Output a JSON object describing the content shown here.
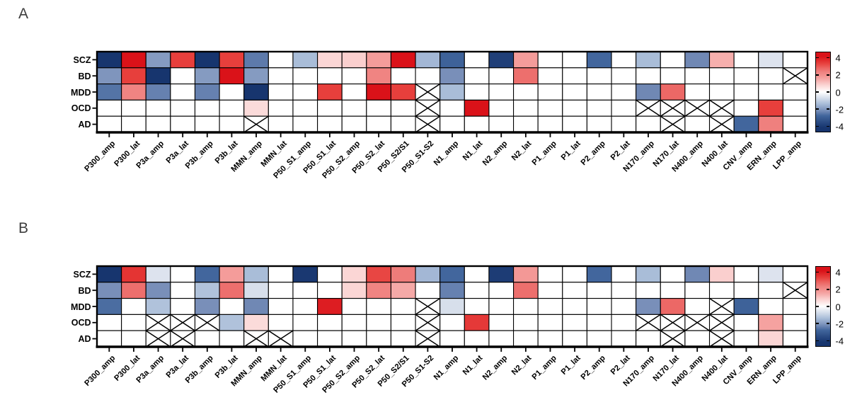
{
  "figure_type": "two-panel heatmap figure",
  "panels": {
    "a_label": "A",
    "b_label": "B"
  },
  "colors": {
    "grid_line": "#000000",
    "background": "#ffffff",
    "positive_max_red": "#da1219",
    "negative_max_blue": "#17356e",
    "panel_letter": "#3d3d3d"
  },
  "colormap": {
    "scale_limit": 4.2,
    "positive_stops": [
      [
        0,
        255,
        255,
        255
      ],
      [
        0.19,
        251,
        214,
        213
      ],
      [
        0.4,
        244,
        157,
        155
      ],
      [
        0.6,
        238,
        123,
        121
      ],
      [
        0.81,
        231,
        63,
        60
      ],
      [
        1,
        218,
        18,
        25
      ]
    ],
    "negative_stops": [
      [
        0,
        255,
        255,
        255
      ],
      [
        0.17,
        214,
        222,
        235
      ],
      [
        0.33,
        170,
        190,
        217
      ],
      [
        0.52,
        122,
        144,
        186
      ],
      [
        0.67,
        65,
        101,
        156
      ],
      [
        1,
        23,
        53,
        110
      ]
    ]
  },
  "chart_data": [
    {
      "type": "heatmap",
      "panel": "A",
      "rows": [
        "SCZ",
        "BD",
        "MDD",
        "OCD",
        "AD"
      ],
      "columns": [
        "P300_amp",
        "P300_lat",
        "P3a_amp",
        "P3a_lat",
        "P3b_amp",
        "P3b_lat",
        "MMN_amp",
        "MMN_lat",
        "P50_S1_amp",
        "P50_S1_lat",
        "P50_S2_amp",
        "P50_S2_lat",
        "P50_S2/S1",
        "P50_S1-S2",
        "N1_amp",
        "N1_lat",
        "N2_amp",
        "N2_lat",
        "P1_amp",
        "P1_lat",
        "P2_amp",
        "P2_lat",
        "N170_amp",
        "N170_lat",
        "N400_amp",
        "N400_lat",
        "CNV_amp",
        "ERN_amp",
        "LPP_amp"
      ],
      "crossed_marker": "x",
      "values": [
        [
          -4.2,
          4.2,
          -2.0,
          3.4,
          -4.2,
          3.4,
          -2.5,
          0,
          -1.4,
          0.8,
          0.9,
          1.7,
          4.2,
          -1.5,
          -2.9,
          0,
          -3.9,
          1.7,
          0,
          0,
          -2.8,
          0,
          -1.4,
          0,
          -2.3,
          1.4,
          0,
          -0.6,
          0
        ],
        [
          -2.1,
          3.4,
          -4.2,
          0,
          -2.0,
          4.2,
          -2.0,
          0,
          0,
          0,
          0,
          2.3,
          0,
          0,
          -2.2,
          0,
          0,
          2.7,
          0,
          0,
          0,
          0,
          0,
          0,
          0,
          0,
          0,
          0,
          "x"
        ],
        [
          -2.6,
          2.3,
          -2.4,
          0,
          -2.4,
          0,
          -4.2,
          0,
          0,
          3.4,
          0,
          4.2,
          3.4,
          "x",
          -1.4,
          0,
          0,
          0,
          0,
          0,
          0,
          0,
          -2.3,
          2.8,
          0,
          0,
          0,
          0,
          0
        ],
        [
          0,
          0,
          0,
          0,
          0,
          0,
          0.7,
          0,
          0,
          0,
          0,
          0,
          0,
          "x",
          0,
          4.2,
          0,
          0,
          0,
          0,
          0,
          0,
          "x",
          "x",
          "x",
          "x",
          0,
          3.4,
          0
        ],
        [
          0,
          0,
          0,
          0,
          0,
          0,
          "x",
          0,
          0,
          0,
          0,
          0,
          0,
          "x",
          0,
          0,
          0,
          0,
          0,
          0,
          0,
          0,
          0,
          "x",
          0,
          "x",
          -2.8,
          2.4,
          0
        ]
      ],
      "colorbar": {
        "ticks": [
          4,
          2,
          0,
          -2,
          -4
        ],
        "range": [
          -4.7,
          4.7
        ]
      }
    },
    {
      "type": "heatmap",
      "panel": "B",
      "rows": [
        "SCZ",
        "BD",
        "MDD",
        "OCD",
        "AD"
      ],
      "columns": [
        "P300_amp",
        "P300_lat",
        "P3a_amp",
        "P3a_lat",
        "P3b_amp",
        "P3b_lat",
        "MMN_amp",
        "MMN_lat",
        "P50_S1_amp",
        "P50_S1_lat",
        "P50_S2_amp",
        "P50_S2_lat",
        "P50_S2/S1",
        "P50_S1-S2",
        "N1_amp",
        "N1_lat",
        "N2_amp",
        "N2_lat",
        "P1_amp",
        "P1_lat",
        "P2_amp",
        "P2_lat",
        "N170_amp",
        "N170_lat",
        "N400_amp",
        "N400_lat",
        "CNV_amp",
        "ERN_amp",
        "LPP_amp"
      ],
      "crossed_marker": "x",
      "values": [
        [
          -4.2,
          3.6,
          -0.6,
          0,
          -2.8,
          1.7,
          -1.4,
          0,
          -4.1,
          0,
          0.8,
          3.3,
          2.5,
          -1.5,
          -2.8,
          0,
          -4.0,
          1.8,
          0,
          0,
          -2.8,
          0,
          -1.4,
          0,
          -2.3,
          0.9,
          0,
          -0.6,
          0
        ],
        [
          -2.2,
          2.7,
          -2.2,
          0,
          -1.3,
          2.7,
          -0.7,
          0,
          0,
          0,
          0.8,
          2.3,
          1.5,
          0,
          -2.4,
          0,
          0,
          2.7,
          0,
          0,
          0,
          0,
          0,
          0,
          0,
          0,
          0,
          0,
          "x"
        ],
        [
          -2.7,
          0,
          -1.3,
          0,
          -2.2,
          0,
          -2.3,
          0,
          0,
          4.0,
          0,
          0,
          0,
          "x",
          -0.7,
          0,
          0,
          0,
          0,
          0,
          0,
          0,
          -2.2,
          2.8,
          0,
          "x",
          -2.9,
          0,
          0
        ],
        [
          0,
          0,
          "x",
          "x",
          "x",
          -1.3,
          0.7,
          0,
          0,
          0,
          0,
          0,
          0,
          "x",
          0,
          3.5,
          0,
          0,
          0,
          0,
          0,
          0,
          "x",
          "x",
          "x",
          "x",
          0,
          1.6,
          0
        ],
        [
          0,
          0,
          "x",
          "x",
          0,
          0,
          "x",
          "x",
          0,
          0,
          0,
          0,
          0,
          "x",
          0,
          0,
          0,
          0,
          0,
          0,
          0,
          0,
          0,
          "x",
          0,
          "x",
          0,
          0.8,
          0
        ]
      ],
      "colorbar": {
        "ticks": [
          4,
          2,
          0,
          -2,
          -4
        ],
        "range": [
          -4.7,
          4.7
        ]
      }
    }
  ]
}
